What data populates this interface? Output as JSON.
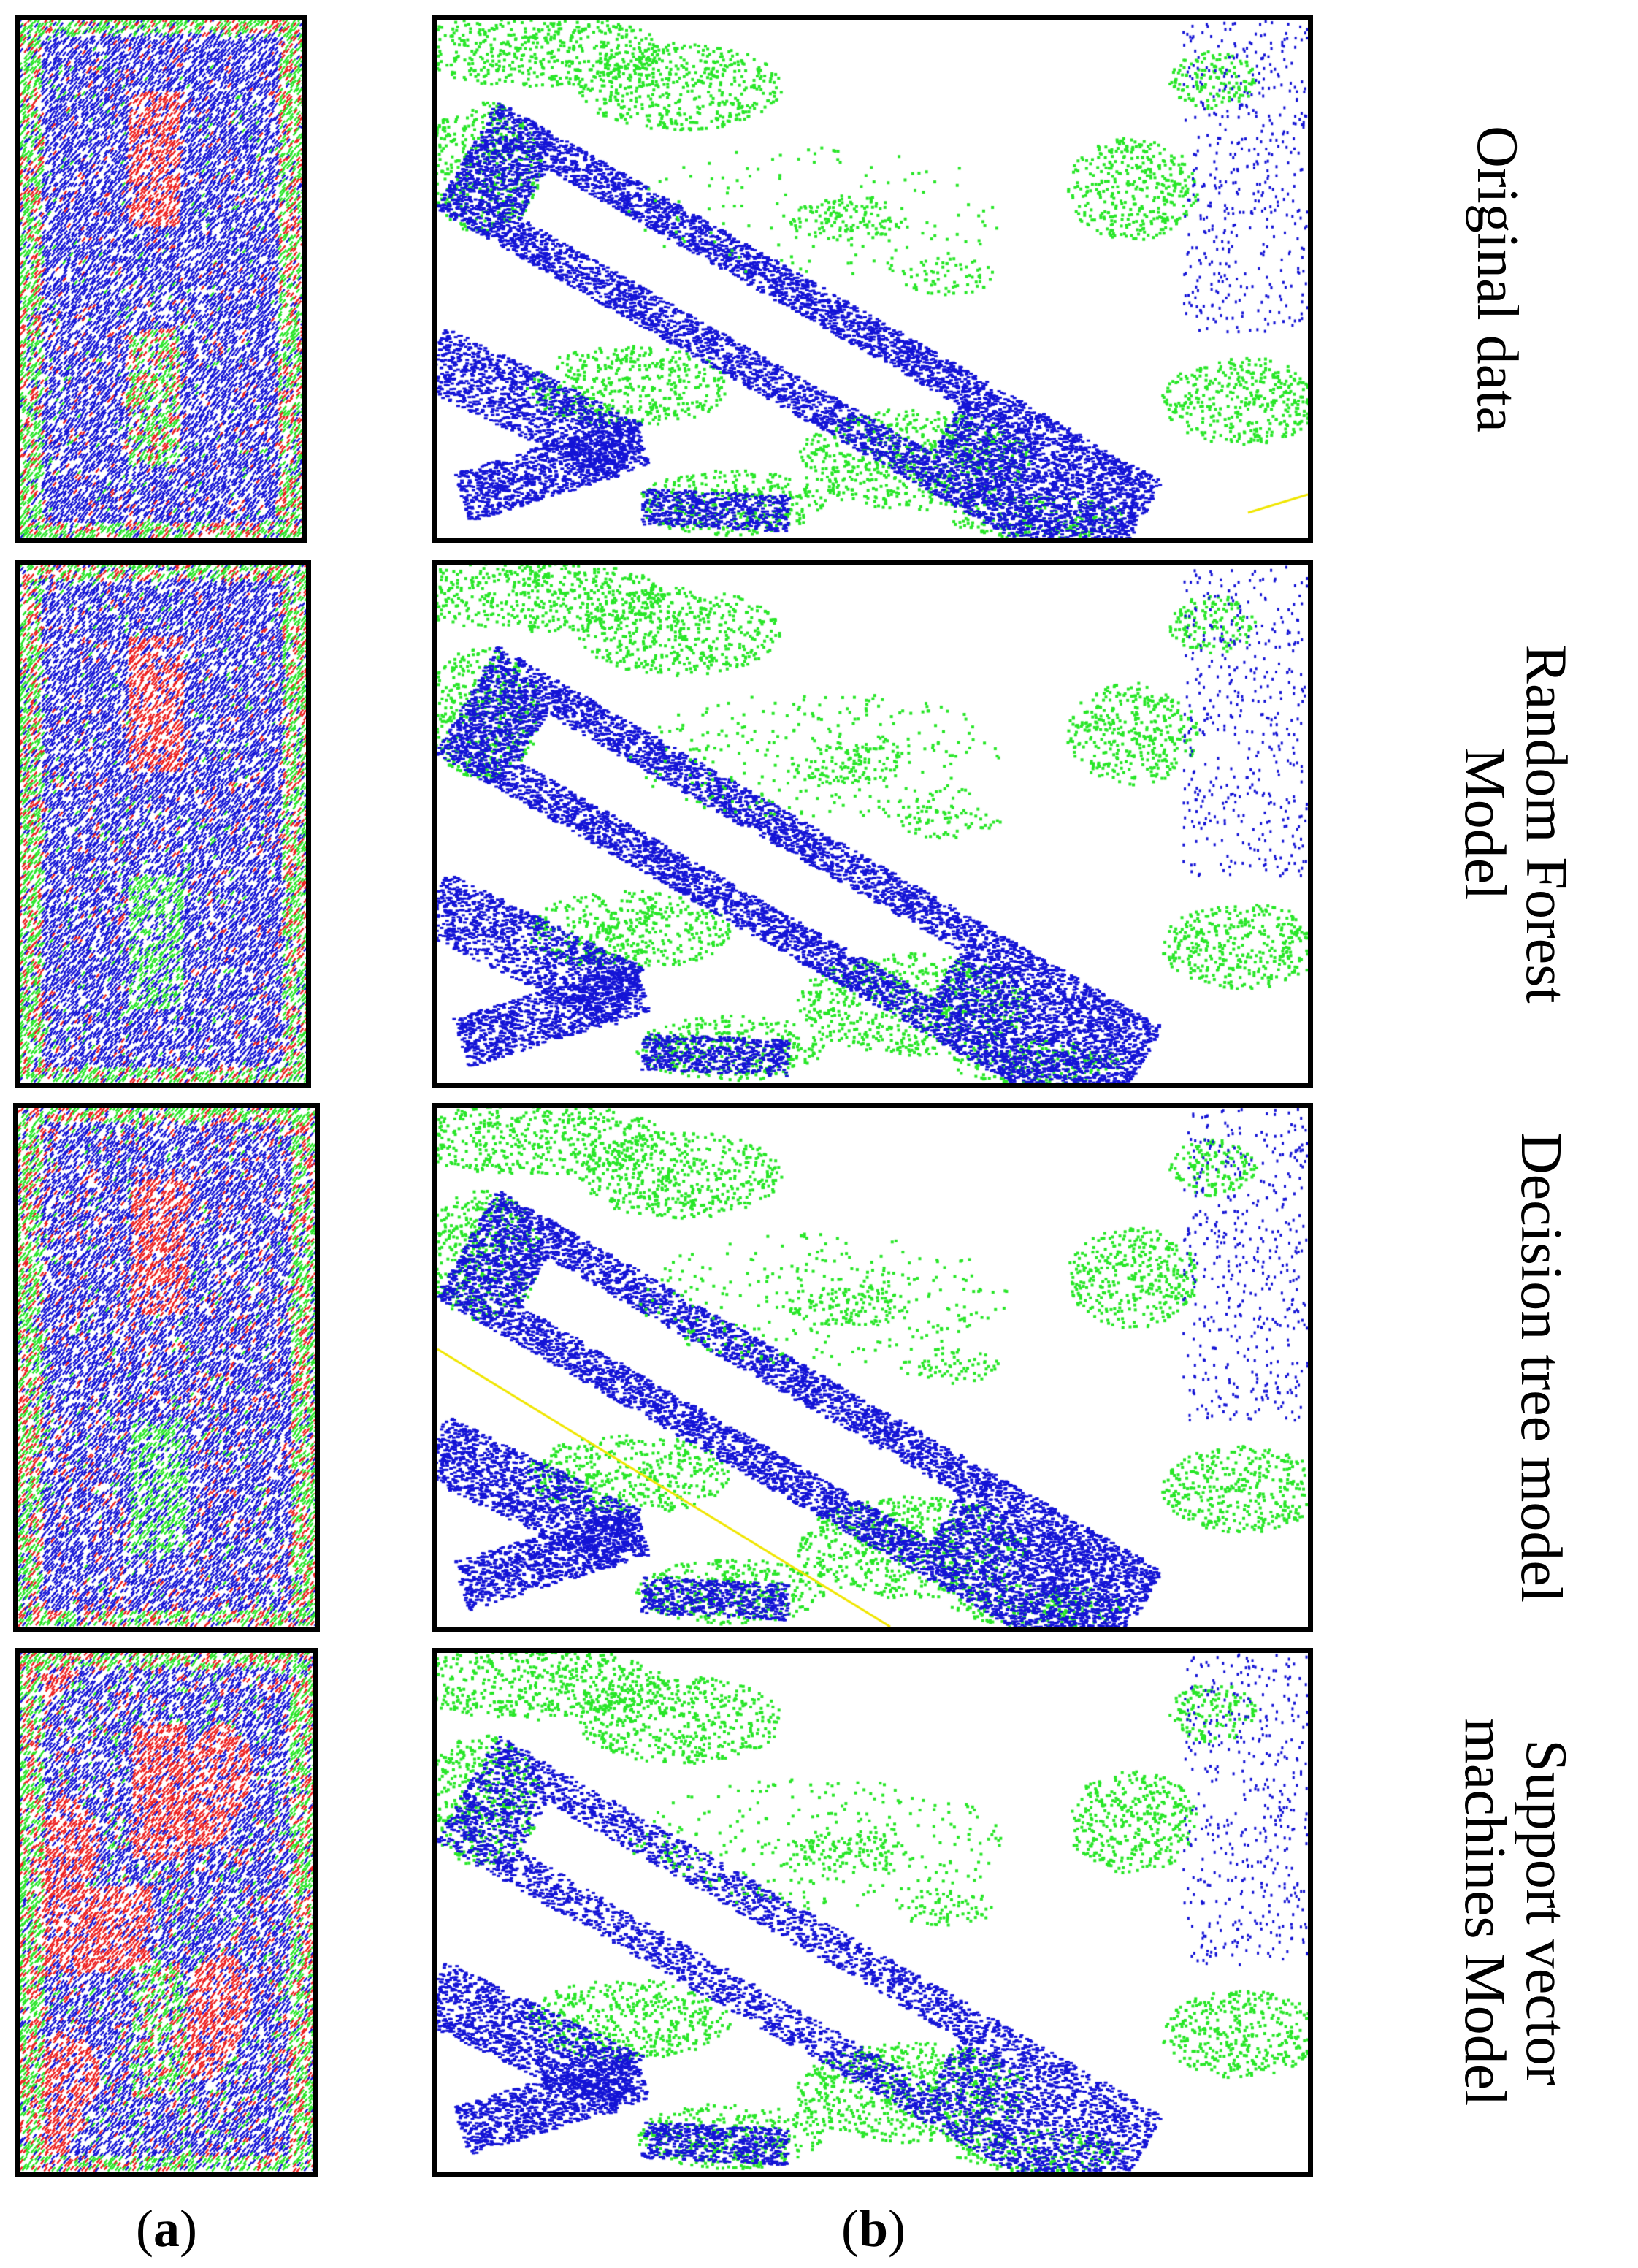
{
  "figure": {
    "rows": [
      {
        "label_lines": [
          "Original data"
        ]
      },
      {
        "label_lines": [
          "Random Forest",
          "Model"
        ]
      },
      {
        "label_lines": [
          "Decision tree model"
        ]
      },
      {
        "label_lines": [
          "Support vector",
          "machines Model"
        ]
      }
    ],
    "columns": [
      {
        "caption_open": "(",
        "caption_letter": "a",
        "caption_close": ")"
      },
      {
        "caption_open": "(",
        "caption_letter": "b",
        "caption_close": ")"
      }
    ],
    "colors": {
      "building": "#1414d6",
      "vegetation": "#28e628",
      "ground": "#ee2020",
      "line": "#f0e600",
      "frame": "#000000",
      "background": "#ffffff"
    }
  }
}
